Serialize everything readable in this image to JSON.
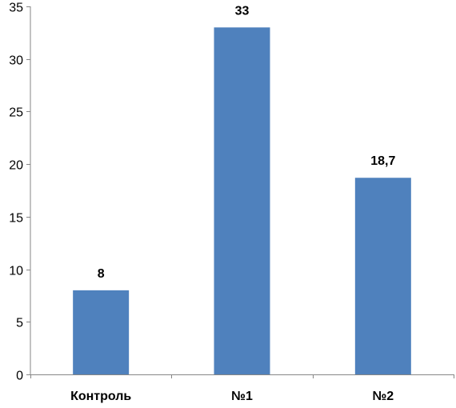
{
  "chart_data": {
    "type": "bar",
    "title": "",
    "xlabel": "",
    "ylabel": "",
    "categories": [
      "Контроль",
      "№1",
      "№2"
    ],
    "values": [
      8,
      33,
      18.7
    ],
    "value_labels": [
      "8",
      "33",
      "18,7"
    ],
    "ylim": [
      0,
      35
    ],
    "yticks": [
      0,
      5,
      10,
      15,
      20,
      25,
      30,
      35
    ],
    "ytick_labels": [
      "0",
      "5",
      "10",
      "15",
      "20",
      "25",
      "30",
      "35"
    ],
    "grid": false,
    "legend": "none",
    "bar_color": "#4f81bd",
    "axis_color": "#868686"
  }
}
